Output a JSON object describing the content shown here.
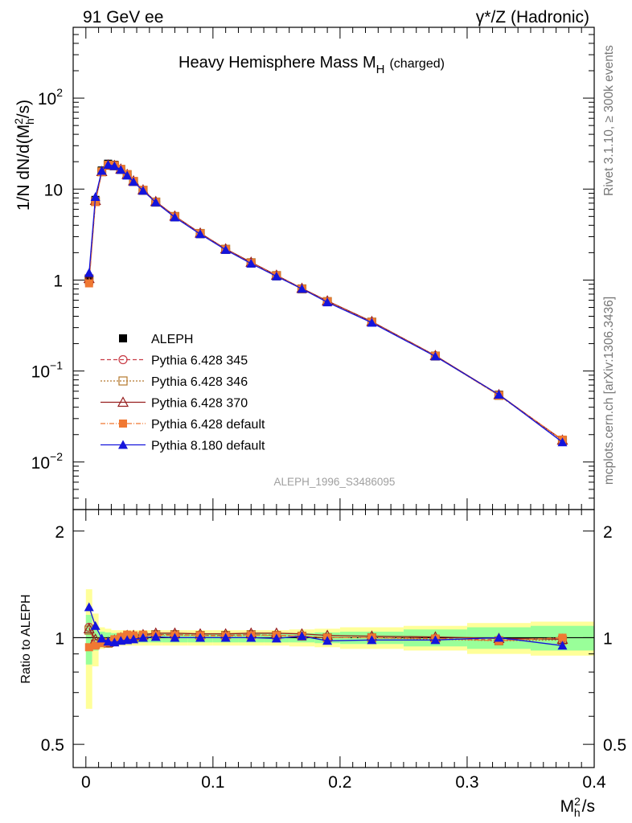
{
  "header": {
    "left": "91 GeV ee",
    "right": "γ*/Z (Hadronic)"
  },
  "side_labels": {
    "rivet": "Rivet 3.1.10, ≥ 300k events",
    "mcplots": "mcplots.cern.ch [arXiv:1306.3436]"
  },
  "chart_data": [
    {
      "type": "line",
      "title_main": "Heavy Hemisphere Mass M",
      "title_sub": "H",
      "title_suffix": "(charged)",
      "ylabel": "1/N dN/d(M_h^2/s)",
      "xlabel": "M_h^2/s",
      "yscale": "log",
      "ylim": [
        0.003,
        600
      ],
      "xlim": [
        -0.01,
        0.4
      ],
      "y_ticks": [
        {
          "value": 0.01,
          "base": "10",
          "exp": "−2"
        },
        {
          "value": 0.1,
          "base": "10",
          "exp": "−1"
        },
        {
          "value": 1,
          "base": "1",
          "exp": ""
        },
        {
          "value": 10,
          "base": "10",
          "exp": ""
        },
        {
          "value": 100,
          "base": "10",
          "exp": "2"
        }
      ],
      "watermark": "ALEPH_1996_S3486095",
      "x": [
        0.0025,
        0.0075,
        0.0125,
        0.0175,
        0.0225,
        0.0275,
        0.0325,
        0.0375,
        0.045,
        0.055,
        0.07,
        0.09,
        0.11,
        0.13,
        0.15,
        0.17,
        0.19,
        0.225,
        0.275,
        0.325,
        0.375
      ],
      "series": [
        {
          "name": "ALEPH",
          "color": "#000000",
          "marker": "square-filled",
          "dash": "none",
          "values": [
            0.98,
            7.6,
            16.0,
            19.0,
            18.5,
            16.6,
            14.3,
            12.1,
            9.6,
            7.1,
            4.9,
            3.2,
            2.15,
            1.52,
            1.1,
            0.79,
            0.58,
            0.345,
            0.147,
            0.055,
            0.0175
          ]
        },
        {
          "name": "Pythia 6.428 345",
          "color": "#c83c46",
          "marker": "circle-open",
          "dash": "5,3",
          "values": [
            1.05,
            7.3,
            15.5,
            18.3,
            18.0,
            16.4,
            14.4,
            12.1,
            9.7,
            7.2,
            5.0,
            3.25,
            2.18,
            1.55,
            1.12,
            0.8,
            0.58,
            0.345,
            0.147,
            0.054,
            0.0175
          ]
        },
        {
          "name": "Pythia 6.428 346",
          "color": "#b4782d",
          "marker": "square-open",
          "dash": "2,2",
          "values": [
            1.03,
            7.3,
            15.5,
            18.3,
            18.0,
            16.4,
            14.4,
            12.1,
            9.7,
            7.2,
            5.0,
            3.25,
            2.18,
            1.55,
            1.12,
            0.8,
            0.58,
            0.345,
            0.146,
            0.054,
            0.0173
          ]
        },
        {
          "name": "Pythia 6.428 370",
          "color": "#961e1e",
          "marker": "triangle-open",
          "dash": "none",
          "values": [
            1.04,
            7.5,
            15.6,
            18.4,
            18.2,
            16.6,
            14.5,
            12.3,
            9.8,
            7.3,
            5.05,
            3.28,
            2.2,
            1.57,
            1.13,
            0.81,
            0.59,
            0.35,
            0.148,
            0.055,
            0.0174
          ]
        },
        {
          "name": "Pythia 6.428 default",
          "color": "#f07832",
          "marker": "square-filled",
          "dash": "6,2,1,2",
          "values": [
            0.92,
            7.2,
            15.4,
            18.4,
            18.3,
            16.7,
            14.6,
            12.3,
            9.8,
            7.2,
            4.98,
            3.25,
            2.17,
            1.54,
            1.12,
            0.8,
            0.58,
            0.345,
            0.146,
            0.054,
            0.0176
          ]
        },
        {
          "name": "Pythia 8.180 default",
          "color": "#1414dc",
          "marker": "triangle-filled",
          "dash": "none",
          "values": [
            1.2,
            8.2,
            15.9,
            18.5,
            17.9,
            16.3,
            14.1,
            12.0,
            9.6,
            7.15,
            4.9,
            3.2,
            2.15,
            1.52,
            1.1,
            0.8,
            0.57,
            0.34,
            0.145,
            0.055,
            0.0165
          ]
        }
      ]
    },
    {
      "type": "line",
      "ylabel": "Ratio to ALEPH",
      "yscale": "log",
      "ylim": [
        0.43,
        2.3
      ],
      "xlim": [
        -0.01,
        0.4
      ],
      "y_ticks": [
        0.5,
        1,
        2
      ],
      "x_ticks": [
        0,
        0.1,
        0.2,
        0.3,
        0.4
      ],
      "x_tick_labels": [
        "0",
        "0.1",
        "0.2",
        "0.3",
        "0.4"
      ],
      "x": [
        0.0025,
        0.0075,
        0.0125,
        0.0175,
        0.0225,
        0.0275,
        0.0325,
        0.0375,
        0.045,
        0.055,
        0.07,
        0.09,
        0.11,
        0.13,
        0.15,
        0.17,
        0.19,
        0.225,
        0.275,
        0.325,
        0.375
      ],
      "x_lo": [
        0,
        0.005,
        0.01,
        0.015,
        0.02,
        0.025,
        0.03,
        0.035,
        0.04,
        0.05,
        0.06,
        0.08,
        0.1,
        0.12,
        0.14,
        0.16,
        0.18,
        0.2,
        0.25,
        0.3,
        0.35
      ],
      "x_hi": [
        0.005,
        0.01,
        0.015,
        0.02,
        0.025,
        0.03,
        0.035,
        0.04,
        0.05,
        0.06,
        0.08,
        0.1,
        0.12,
        0.14,
        0.16,
        0.18,
        0.2,
        0.25,
        0.3,
        0.35,
        0.4
      ],
      "band_inner": [
        0.16,
        0.08,
        0.04,
        0.035,
        0.03,
        0.03,
        0.03,
        0.03,
        0.03,
        0.03,
        0.03,
        0.03,
        0.03,
        0.03,
        0.03,
        0.03,
        0.035,
        0.04,
        0.055,
        0.07,
        0.08
      ],
      "band_outer": [
        0.37,
        0.17,
        0.07,
        0.06,
        0.05,
        0.05,
        0.05,
        0.05,
        0.05,
        0.05,
        0.05,
        0.05,
        0.05,
        0.05,
        0.05,
        0.055,
        0.06,
        0.07,
        0.08,
        0.1,
        0.11
      ],
      "series": [
        {
          "name": "Pythia 6.428 345",
          "color": "#c83c46",
          "marker": "circle-open",
          "dash": "5,3",
          "values": [
            1.07,
            0.96,
            0.97,
            0.965,
            0.975,
            0.99,
            1.005,
            1.0,
            1.01,
            1.02,
            1.02,
            1.015,
            1.015,
            1.02,
            1.015,
            1.01,
            1.0,
            1.0,
            0.995,
            0.985,
            0.995
          ]
        },
        {
          "name": "Pythia 6.428 346",
          "color": "#b4782d",
          "marker": "square-open",
          "dash": "2,2",
          "values": [
            1.05,
            0.96,
            0.97,
            0.965,
            0.975,
            0.99,
            1.005,
            1.0,
            1.01,
            1.02,
            1.02,
            1.015,
            1.015,
            1.02,
            1.015,
            1.01,
            1.0,
            1.0,
            0.99,
            0.98,
            0.985
          ]
        },
        {
          "name": "Pythia 6.428 370",
          "color": "#961e1e",
          "marker": "triangle-open",
          "dash": "none",
          "values": [
            1.06,
            0.99,
            0.975,
            0.97,
            0.985,
            1.0,
            1.015,
            1.015,
            1.02,
            1.03,
            1.03,
            1.025,
            1.025,
            1.03,
            1.03,
            1.025,
            1.015,
            1.01,
            1.005,
            0.995,
            0.99
          ]
        },
        {
          "name": "Pythia 6.428 default",
          "color": "#f07832",
          "marker": "square-filled",
          "dash": "6,2,1,2",
          "values": [
            0.94,
            0.95,
            0.965,
            0.97,
            0.99,
            1.005,
            1.02,
            1.015,
            1.02,
            1.015,
            1.015,
            1.015,
            1.01,
            1.015,
            1.015,
            1.01,
            1.0,
            1.0,
            0.995,
            0.98,
            1.0
          ]
        },
        {
          "name": "Pythia 8.180 default",
          "color": "#1414dc",
          "marker": "triangle-filled",
          "dash": "none",
          "values": [
            1.22,
            1.08,
            0.995,
            0.975,
            0.97,
            0.98,
            0.985,
            0.99,
            1.0,
            1.005,
            1.0,
            1.0,
            1.0,
            1.0,
            0.995,
            1.01,
            0.98,
            0.985,
            0.985,
            1.0,
            0.95
          ]
        }
      ]
    }
  ]
}
